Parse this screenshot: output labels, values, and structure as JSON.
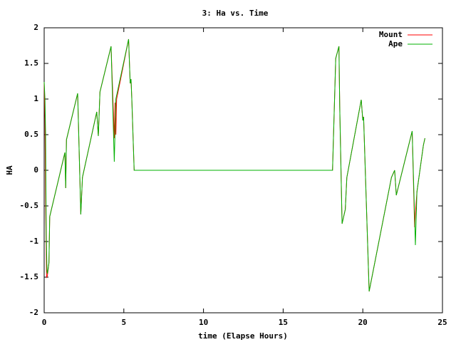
{
  "chart_data": {
    "type": "line",
    "title": "3: Ha vs. Time",
    "xlabel": "time (Elapse Hours)",
    "ylabel": "HA",
    "xlim": [
      0,
      25
    ],
    "xticks": [
      0,
      5,
      10,
      15,
      20,
      25
    ],
    "ylim": [
      -2,
      2
    ],
    "yticks": [
      -2,
      -1.5,
      -1,
      -0.5,
      0,
      0.5,
      1,
      1.5,
      2
    ],
    "grid": false,
    "legend": "top-right",
    "series": [
      {
        "name": "Mount",
        "color": "#ff0000",
        "x": [
          0,
          0.05,
          0.1,
          0.15,
          0.2,
          0.3,
          0.35,
          1.3,
          1.35,
          1.4,
          2.1,
          2.3,
          2.4,
          3.3,
          3.4,
          3.5,
          4.2,
          4.4,
          4.45,
          4.5,
          4.55,
          5.3,
          5.4,
          5.45,
          5.5,
          5.65,
          18.1,
          18.3,
          18.5,
          18.55,
          18.7,
          18.9,
          19.0,
          19.9,
          20.0,
          20.05,
          20.4,
          21.8,
          22.0,
          22.1,
          23.1,
          23.25,
          23.3,
          23.4,
          23.8,
          23.9
        ],
        "values": [
          1.24,
          0.72,
          -0.6,
          -1.5,
          -1.48,
          -1.3,
          -0.65,
          0.25,
          -0.25,
          0.43,
          1.08,
          -0.62,
          -0.1,
          0.82,
          0.48,
          1.1,
          1.74,
          0.45,
          0.95,
          0.5,
          1.0,
          1.84,
          1.22,
          1.28,
          1.0,
          0,
          0,
          1.57,
          1.74,
          0.9,
          -0.75,
          -0.55,
          -0.1,
          0.99,
          0.7,
          0.75,
          -1.7,
          -0.1,
          0,
          -0.35,
          0.55,
          -0.8,
          -0.6,
          -0.3,
          0.35,
          0.45
        ]
      },
      {
        "name": "Ape",
        "color": "#00b000",
        "x": [
          0,
          0.05,
          0.09,
          0.13,
          0.18,
          0.2,
          0.3,
          0.35,
          1.3,
          1.35,
          1.4,
          2.1,
          2.3,
          2.4,
          3.3,
          3.4,
          3.5,
          4.2,
          4.4,
          4.5,
          5.3,
          5.4,
          5.45,
          5.5,
          5.65,
          18.1,
          18.3,
          18.5,
          18.55,
          18.7,
          18.9,
          19.0,
          19.9,
          20.0,
          20.05,
          20.4,
          21.8,
          22.0,
          22.1,
          23.1,
          23.3,
          23.4,
          23.8,
          23.9
        ],
        "values": [
          1.24,
          1.0,
          0.5,
          -0.9,
          -1.42,
          -1.45,
          -1.3,
          -0.65,
          0.25,
          -0.25,
          0.43,
          1.08,
          -0.62,
          -0.1,
          0.82,
          0.48,
          1.1,
          1.74,
          0.12,
          1.0,
          1.84,
          1.22,
          1.28,
          1.0,
          0,
          0,
          1.57,
          1.74,
          0.9,
          -0.75,
          -0.55,
          -0.1,
          0.99,
          0.7,
          0.75,
          -1.7,
          -0.1,
          0,
          -0.35,
          0.55,
          -1.05,
          -0.3,
          0.35,
          0.45
        ]
      }
    ]
  }
}
